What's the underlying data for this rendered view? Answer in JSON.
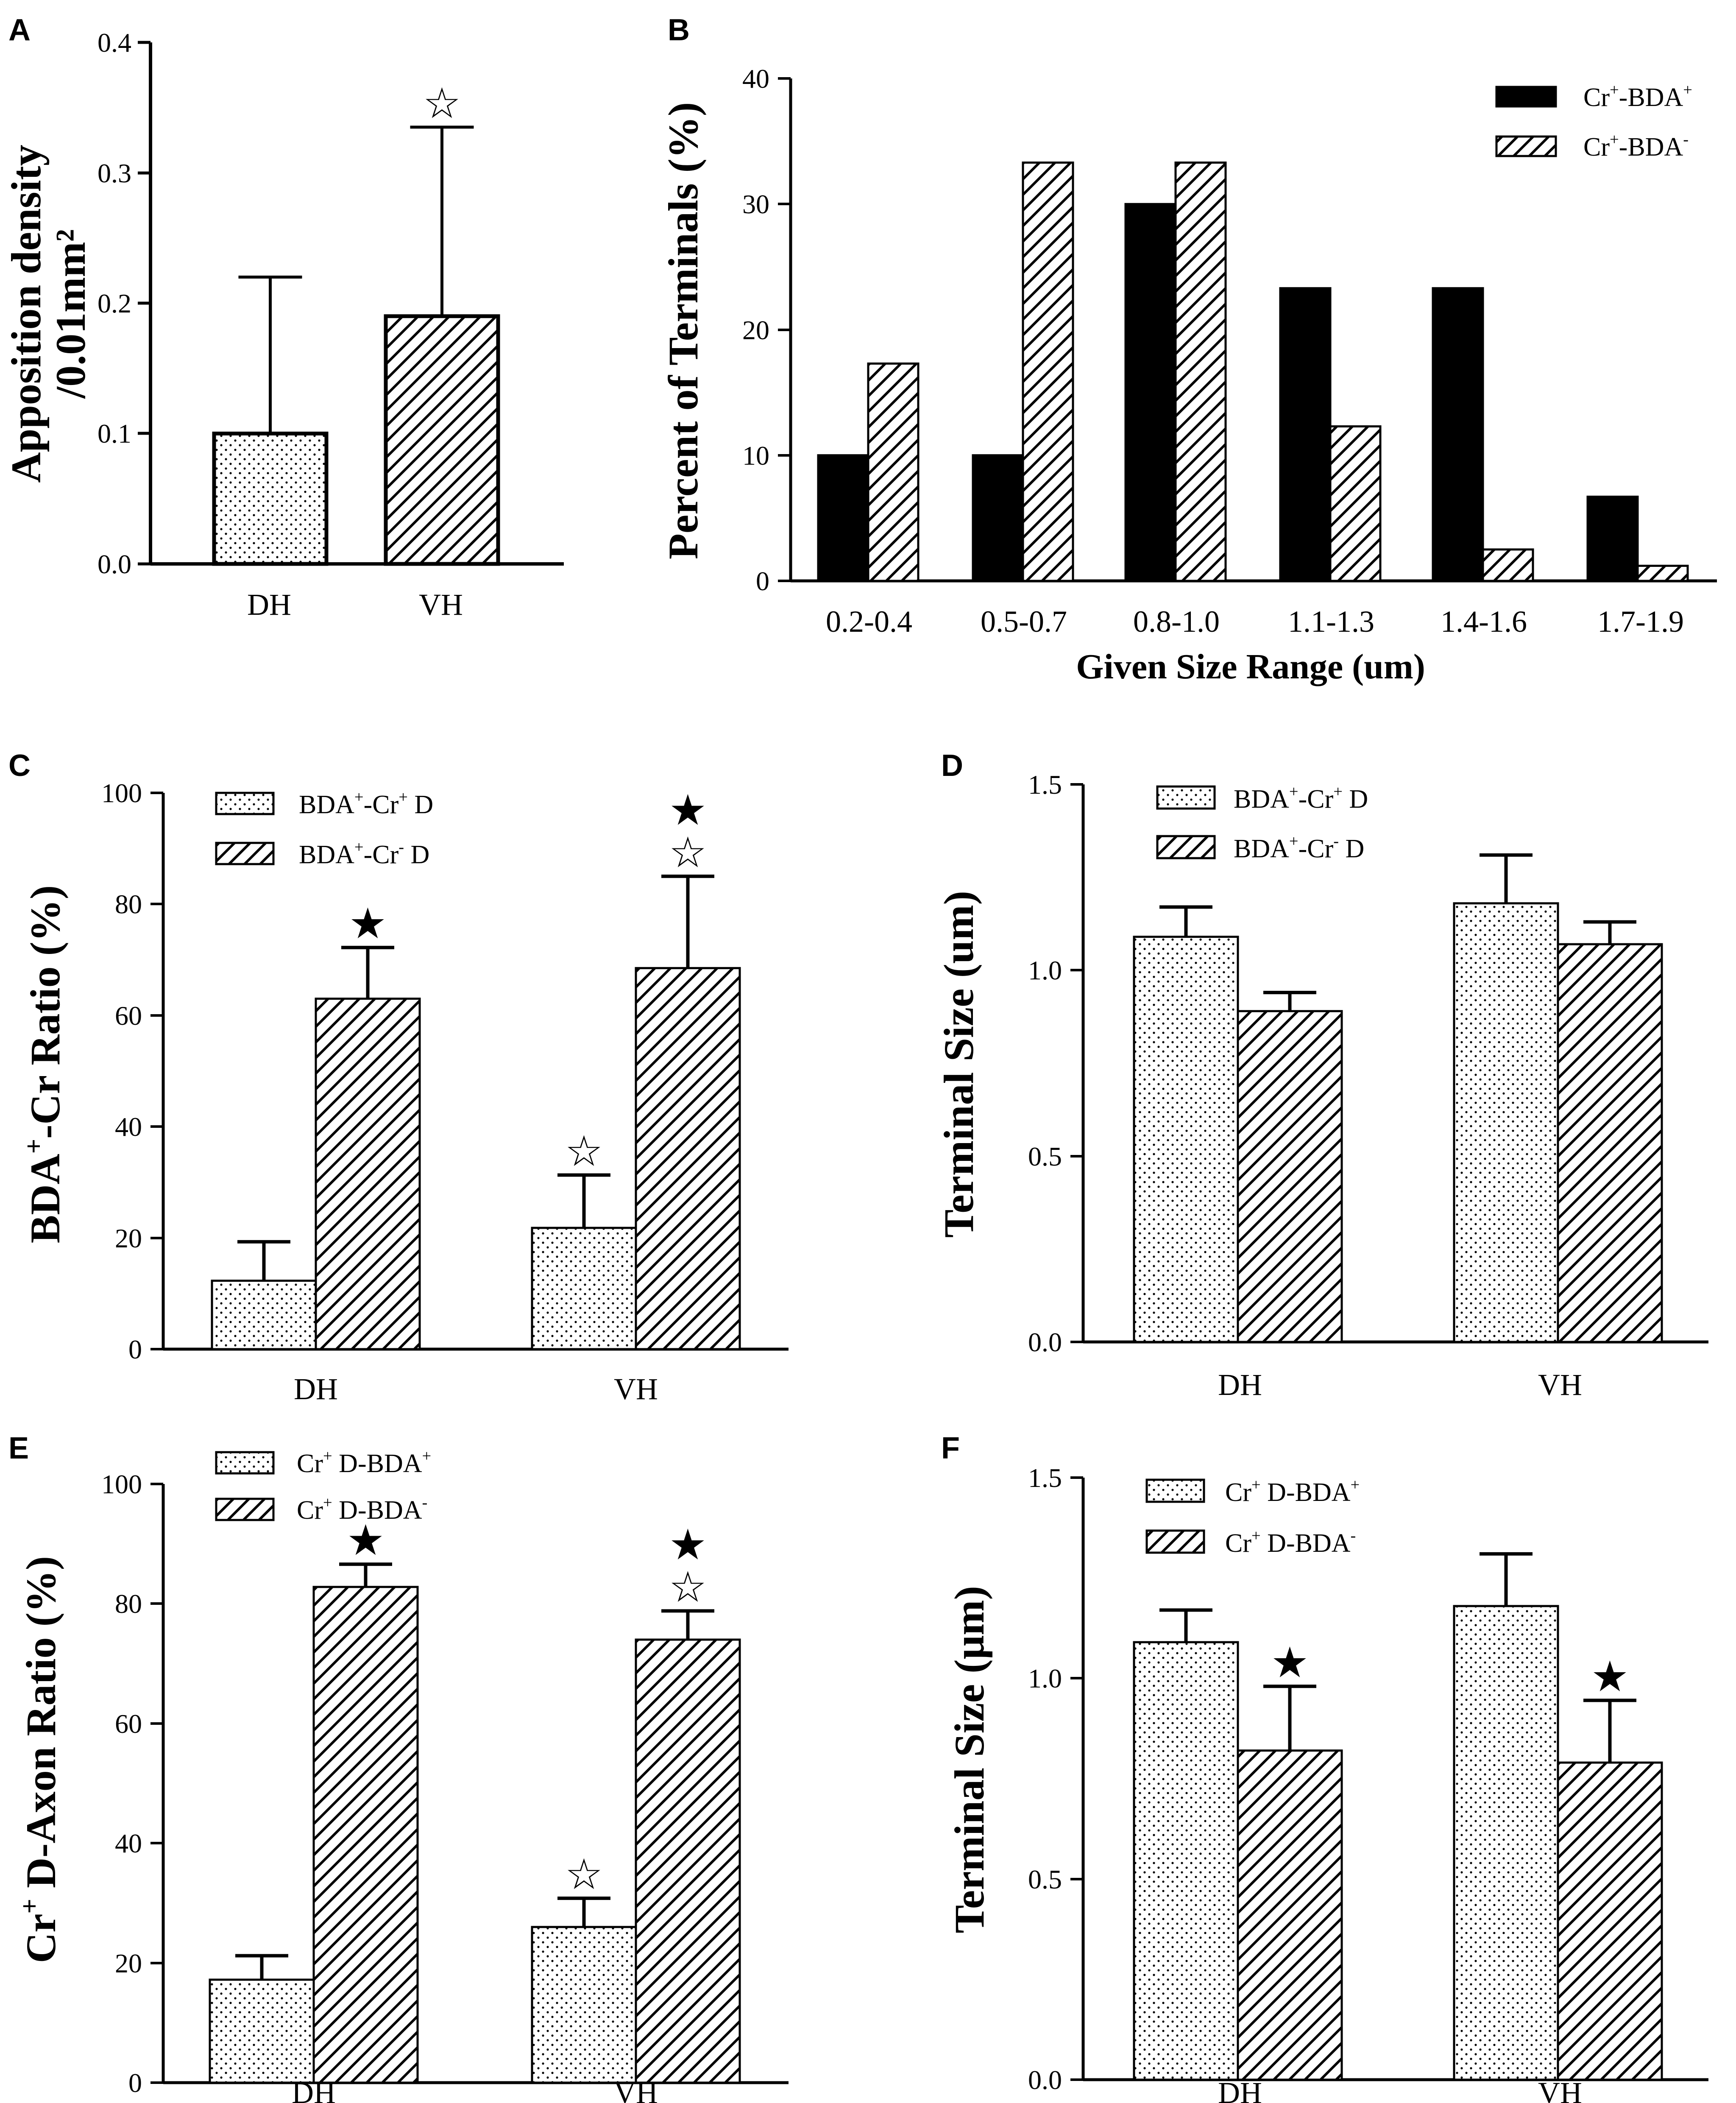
{
  "chart_data": [
    {
      "panel": "A",
      "type": "bar",
      "title": "",
      "ylabel_line1": "Apposition density",
      "ylabel_line2": "/0.01mm²",
      "xlabel": "",
      "ylim": [
        0,
        0.4
      ],
      "yticks": [
        "0.0",
        "0.1",
        "0.2",
        "0.3",
        "0.4"
      ],
      "categories": [
        "DH",
        "VH"
      ],
      "values": [
        0.1,
        0.19
      ],
      "errors": [
        0.12,
        0.145
      ],
      "patterns": [
        "dots",
        "hatch"
      ],
      "stars": [
        [],
        [
          "open"
        ]
      ]
    },
    {
      "panel": "B",
      "type": "bar",
      "title": "",
      "ylabel": "Percent of Terminals (%)",
      "xlabel": "Given Size Range (um)",
      "ylim": [
        0,
        40
      ],
      "yticks": [
        "0",
        "10",
        "20",
        "30",
        "40"
      ],
      "categories": [
        "0.2-0.4",
        "0.5-0.7",
        "0.8-1.0",
        "1.1-1.3",
        "1.4-1.6",
        "1.7-1.9"
      ],
      "series": [
        {
          "name": "Cr⁺-BDA⁺",
          "legend_base": "Cr",
          "legend_sup1": "+",
          "legend_mid": "-BDA",
          "legend_sup2": "+",
          "pattern": "solid",
          "values": [
            10,
            10,
            30,
            23.3,
            23.3,
            6.7
          ]
        },
        {
          "name": "Cr⁺-BDA⁻",
          "legend_base": "Cr",
          "legend_sup1": "+",
          "legend_mid": "-BDA",
          "legend_sup2": "-",
          "pattern": "hatch",
          "values": [
            17.3,
            33.3,
            33.3,
            12.3,
            2.5,
            1.2
          ]
        }
      ]
    },
    {
      "panel": "C",
      "type": "bar",
      "title": "",
      "ylabel_base": "BDA",
      "ylabel_sup": "+",
      "ylabel_rest": "-Cr Ratio (%)",
      "xlabel": "",
      "ylim": [
        0,
        100
      ],
      "yticks": [
        "0",
        "20",
        "40",
        "60",
        "80",
        "100"
      ],
      "categories": [
        "DH",
        "VH"
      ],
      "series": [
        {
          "name": "BDA⁺-Cr⁺ D",
          "legend_base": "BDA",
          "legend_sup1": "+",
          "legend_mid": "-Cr",
          "legend_sup2": "+",
          "legend_end": " D",
          "pattern": "dots",
          "values": [
            12.3,
            21.8
          ],
          "errors": [
            7,
            9.5
          ],
          "stars": [
            [],
            [
              "open"
            ]
          ]
        },
        {
          "name": "BDA⁺-Cr⁻ D",
          "legend_base": "BDA",
          "legend_sup1": "+",
          "legend_mid": "-Cr",
          "legend_sup2": "-",
          "legend_end": " D",
          "pattern": "hatch",
          "values": [
            63,
            68.5
          ],
          "errors": [
            9.2,
            16.5
          ],
          "stars": [
            [
              "filled"
            ],
            [
              "open",
              "filled"
            ]
          ]
        }
      ]
    },
    {
      "panel": "D",
      "type": "bar",
      "title": "",
      "ylabel": "Terminal Size (um)",
      "xlabel": "",
      "ylim": [
        0,
        1.5
      ],
      "yticks": [
        "0.0",
        "0.5",
        "1.0",
        "1.5"
      ],
      "categories": [
        "DH",
        "VH"
      ],
      "series": [
        {
          "name": "BDA⁺-Cr⁺ D",
          "legend_base": "BDA",
          "legend_sup1": "+",
          "legend_mid": "-Cr",
          "legend_sup2": "+",
          "legend_end": " D",
          "pattern": "dots",
          "values": [
            1.09,
            1.18
          ],
          "errors": [
            0.08,
            0.13
          ],
          "stars": [
            [],
            []
          ]
        },
        {
          "name": "BDA⁺-Cr⁻ D",
          "legend_base": "BDA",
          "legend_sup1": "+",
          "legend_mid": "-Cr",
          "legend_sup2": "-",
          "legend_end": " D",
          "pattern": "hatch",
          "values": [
            0.89,
            1.07
          ],
          "errors": [
            0.05,
            0.06
          ],
          "stars": [
            [],
            []
          ]
        }
      ]
    },
    {
      "panel": "E",
      "type": "bar",
      "title": "",
      "ylabel_base": "Cr",
      "ylabel_sup": "+",
      "ylabel_rest": " D-Axon Ratio (%)",
      "xlabel": "",
      "ylim": [
        0,
        100
      ],
      "yticks": [
        "0",
        "20",
        "40",
        "60",
        "80",
        "100"
      ],
      "categories": [
        "DH",
        "VH"
      ],
      "series": [
        {
          "name": "Cr⁺ D-BDA⁺",
          "legend_base": "Cr",
          "legend_sup1": "+",
          "legend_mid": " D-BDA",
          "legend_sup2": "+",
          "pattern": "dots",
          "values": [
            17.2,
            26
          ],
          "errors": [
            4,
            4.8
          ],
          "stars": [
            [],
            [
              "open"
            ]
          ]
        },
        {
          "name": "Cr⁺ D-BDA⁻",
          "legend_base": "Cr",
          "legend_sup1": "+",
          "legend_mid": " D-BDA",
          "legend_sup2": "-",
          "pattern": "hatch",
          "values": [
            82.8,
            74
          ],
          "errors": [
            3.8,
            4.8
          ],
          "stars": [
            [
              "filled"
            ],
            [
              "open",
              "filled"
            ]
          ]
        }
      ]
    },
    {
      "panel": "F",
      "type": "bar",
      "title": "",
      "ylabel": "Terminal Size (μm)",
      "xlabel": "",
      "ylim": [
        0,
        1.5
      ],
      "yticks": [
        "0.0",
        "0.5",
        "1.0",
        "1.5"
      ],
      "categories": [
        "DH",
        "VH"
      ],
      "series": [
        {
          "name": "Cr⁺ D-BDA⁺",
          "legend_base": "Cr",
          "legend_sup1": "+",
          "legend_mid": " D-BDA",
          "legend_sup2": "+",
          "pattern": "dots",
          "values": [
            1.09,
            1.18
          ],
          "errors": [
            0.08,
            0.13
          ],
          "stars": [
            [],
            []
          ]
        },
        {
          "name": "Cr⁺ D-BDA⁻",
          "legend_base": "Cr",
          "legend_sup1": "+",
          "legend_mid": " D-BDA",
          "legend_sup2": "-",
          "pattern": "hatch",
          "values": [
            0.82,
            0.79
          ],
          "errors": [
            0.16,
            0.155
          ],
          "stars": [
            [
              "filled"
            ],
            [
              "filled"
            ]
          ]
        }
      ]
    }
  ]
}
